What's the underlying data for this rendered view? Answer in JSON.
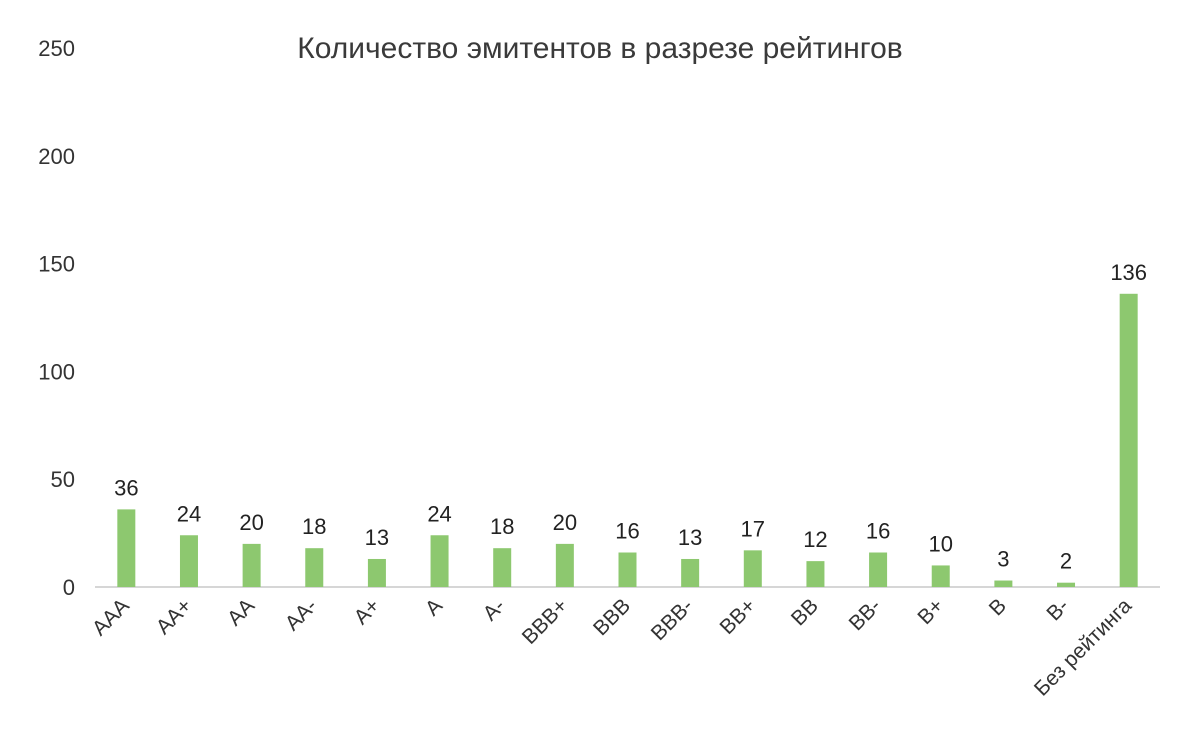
{
  "chart_data": {
    "type": "bar",
    "title": "Количество эмитентов в разрезе рейтингов",
    "xlabel": "",
    "ylabel": "",
    "categories": [
      "AAA",
      "AA+",
      "AA",
      "AA-",
      "A+",
      "A",
      "A-",
      "BBB+",
      "BBB",
      "BBB-",
      "BB+",
      "BB",
      "BB-",
      "B+",
      "B",
      "B-",
      "Без рейтинга"
    ],
    "values": [
      36,
      24,
      20,
      18,
      13,
      24,
      18,
      20,
      16,
      13,
      17,
      12,
      16,
      10,
      3,
      2,
      136
    ],
    "data_labels": [
      "36",
      "24",
      "20",
      "18",
      "13",
      "24",
      "18",
      "20",
      "16",
      "13",
      "17",
      "12",
      "16",
      "10",
      "3",
      "2",
      "136"
    ],
    "yticks": [
      "0",
      "50",
      "100",
      "150",
      "200",
      "250"
    ],
    "ylim": [
      0,
      250
    ],
    "grid": false,
    "legend": "none",
    "bar_color": "#8dc86f",
    "axis_color": "#c8c8c8"
  }
}
